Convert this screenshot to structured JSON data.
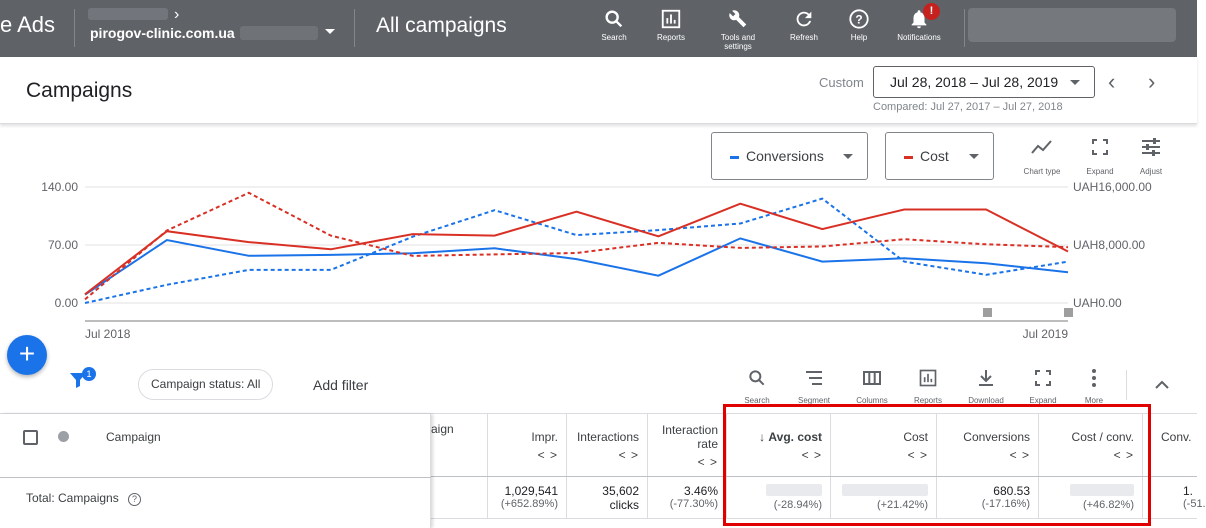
{
  "topbar": {
    "brand": "e Ads",
    "account_name": "pirogov-clinic.com.ua",
    "page_title": "All campaigns",
    "tools": [
      {
        "label": "Search",
        "icon": "search-icon"
      },
      {
        "label": "Reports",
        "icon": "reports-icon"
      },
      {
        "label": "Tools and settings",
        "icon": "wrench-icon"
      },
      {
        "label": "Refresh",
        "icon": "refresh-icon"
      },
      {
        "label": "Help",
        "icon": "help-icon"
      },
      {
        "label": "Notifications",
        "icon": "bell-icon"
      }
    ],
    "notification_badge": "!"
  },
  "subhead": {
    "title": "Campaigns",
    "custom_label": "Custom",
    "date_range": "Jul 28, 2018 – Jul 28, 2019",
    "compared": "Compared: Jul 27, 2017 – Jul 27, 2018"
  },
  "chart_controls": {
    "metric1": "Conversions",
    "metric2": "Cost",
    "chart_type": "Chart type",
    "expand": "Expand",
    "adjust": "Adjust"
  },
  "chart_data": {
    "type": "line",
    "x_labels": [
      "Jul 2018",
      "Jul 2019"
    ],
    "y_left_ticks": [
      "140.00",
      "70.00",
      "0.00"
    ],
    "y_right_ticks": [
      "UAH16,000.00",
      "UAH8,000.00",
      "UAH0.00"
    ],
    "ylim_left": [
      0,
      140
    ],
    "ylim_right": [
      0,
      16000
    ],
    "colors": {
      "conversions": "#1a73e8",
      "cost": "#d93025"
    },
    "series": [
      {
        "metric": "conversions",
        "style": "solid",
        "values": [
          10,
          76,
          57,
          58,
          60,
          66,
          53,
          33,
          78,
          50,
          54,
          48,
          37
        ]
      },
      {
        "metric": "conversions",
        "style": "dashed",
        "values": [
          0,
          22,
          40,
          40,
          80,
          112,
          82,
          88,
          96,
          126,
          50,
          34,
          50
        ]
      },
      {
        "metric": "cost",
        "style": "solid",
        "values": [
          1200,
          9900,
          8400,
          7400,
          9500,
          9300,
          12600,
          9200,
          13700,
          10200,
          12900,
          12900,
          7100
        ]
      },
      {
        "metric": "cost",
        "style": "dashed",
        "values": [
          500,
          10000,
          15200,
          9300,
          6500,
          6700,
          6900,
          8300,
          7600,
          7800,
          8800,
          8100,
          7700
        ]
      }
    ]
  },
  "filterbar": {
    "filter_badge": "1",
    "chip": "Campaign status: All",
    "add_filter": "Add filter",
    "tools": [
      {
        "label": "Search",
        "icon": "search-icon"
      },
      {
        "label": "Segment",
        "icon": "segment-icon"
      },
      {
        "label": "Columns",
        "icon": "columns-icon"
      },
      {
        "label": "Reports",
        "icon": "reports-icon"
      },
      {
        "label": "Download",
        "icon": "download-icon"
      },
      {
        "label": "Expand",
        "icon": "expand-icon"
      },
      {
        "label": "More",
        "icon": "more-icon"
      }
    ]
  },
  "table": {
    "headers": {
      "campaign": "Campaign",
      "campaign_partial": "aign",
      "impr": "Impr.",
      "interactions": "Interactions",
      "interaction_rate": "Interaction rate",
      "avg_cost": "Avg. cost",
      "cost": "Cost",
      "conversions": "Conversions",
      "cost_conv": "Cost / conv.",
      "conv_partial": "Conv."
    },
    "total": {
      "label": "Total: Campaigns",
      "impr": "1,029,541",
      "impr_change": "(+652.89%)",
      "interactions": "35,602",
      "interactions_unit": "clicks",
      "interaction_rate": "3.46%",
      "interaction_rate_change": "(-77.30%)",
      "avg_cost_change": "(-28.94%)",
      "cost_change": "(+21.42%)",
      "conversions": "680.53",
      "conversions_change": "(-17.16%)",
      "cost_conv_change": "(+46.82%)",
      "conv_partial": "1.",
      "conv_partial_change": "(-51."
    }
  }
}
